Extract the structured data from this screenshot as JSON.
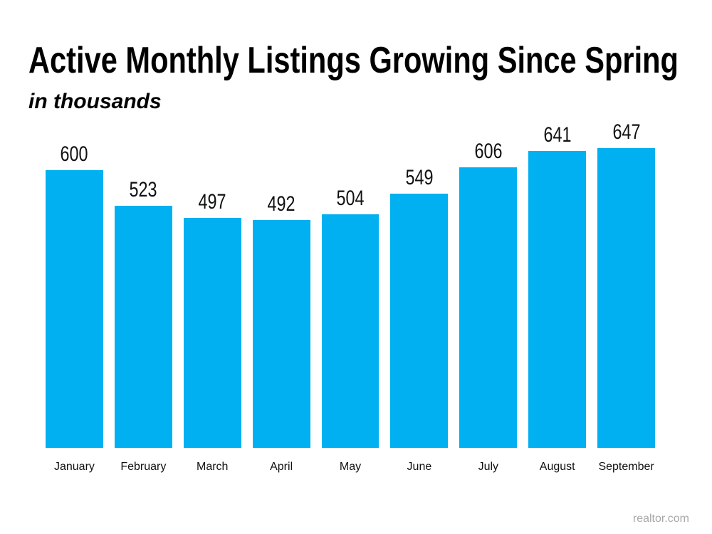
{
  "slide": {
    "title": "Active Monthly Listings Growing Since Spring",
    "subtitle": "in thousands",
    "source": "realtor.com"
  },
  "colors": {
    "bar": "#00B0F0",
    "text": "#000000",
    "data_label": "#111111",
    "source_text": "#A8A8A8",
    "background": "#FFFFFF"
  },
  "chart_data": {
    "type": "bar",
    "title": "Active Monthly Listings Growing Since Spring",
    "subtitle": "in thousands",
    "unit": "thousands",
    "categories": [
      "January",
      "February",
      "March",
      "April",
      "May",
      "June",
      "July",
      "August",
      "September"
    ],
    "values": [
      600,
      523,
      497,
      492,
      504,
      549,
      606,
      641,
      647
    ],
    "data_labels_shown": true,
    "xlabel": "",
    "ylabel": "",
    "ylim": [
      0,
      650
    ],
    "gridlines": false,
    "axes_hidden": true,
    "legend": "none",
    "bar_color": "#00B0F0",
    "source": "realtor.com"
  }
}
